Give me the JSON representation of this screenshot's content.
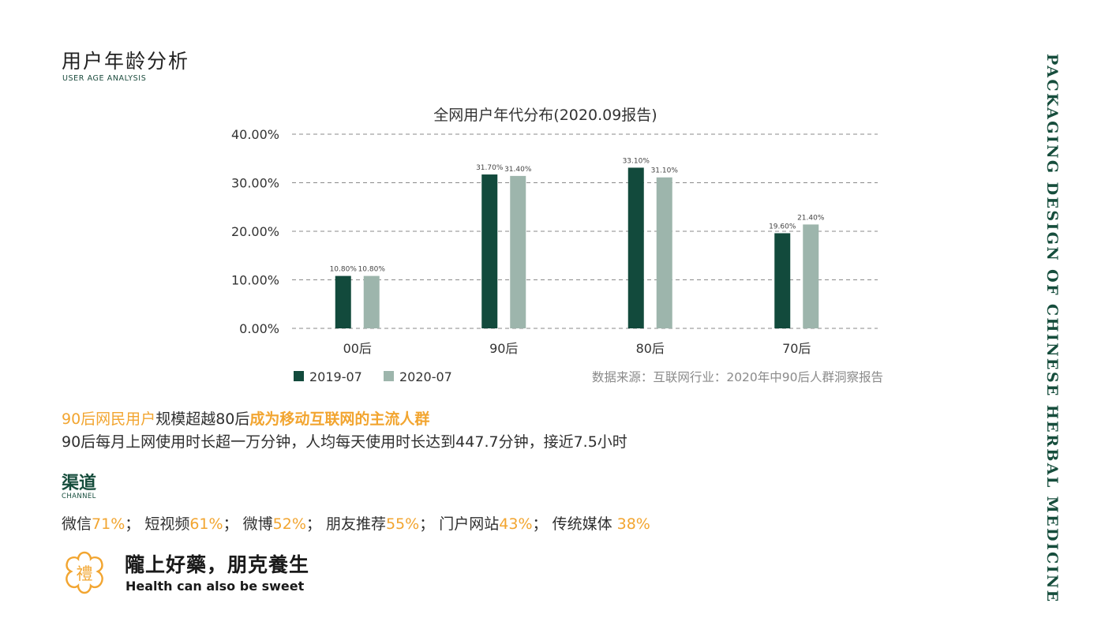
{
  "header": {
    "title": "用户年龄分析",
    "subtitle": "USER AGE ANALYSIS"
  },
  "side_title": "PACKAGING DESIGN OF CHINESE HERBAL MEDICINE",
  "chart_data": {
    "type": "bar",
    "title": "全网用户年代分布(2020.09报告)",
    "categories": [
      "00后",
      "90后",
      "80后",
      "70后"
    ],
    "series": [
      {
        "name": "2019-07",
        "values": [
          10.8,
          31.7,
          33.1,
          19.6
        ],
        "labels": [
          "10.80%",
          "31.70%",
          "33.10%",
          "19.60%"
        ],
        "color": "#124a3c"
      },
      {
        "name": "2020-07",
        "values": [
          10.8,
          31.4,
          31.1,
          21.4
        ],
        "labels": [
          "10.80%",
          "31.40%",
          "31.10%",
          "21.40%"
        ],
        "color": "#9db5ac"
      }
    ],
    "y_ticks": [
      "0.00%",
      "10.00%",
      "20.00%",
      "30.00%",
      "40.00%"
    ],
    "ylim": [
      0,
      40
    ],
    "grid": true,
    "legend_position": "bottom-left",
    "source": "数据来源：互联网行业：2020年中90后人群洞察报告"
  },
  "summary": {
    "headline_part1": "90后网民用户",
    "headline_part2": "规模超越80后",
    "headline_part3": "成为移动互联网的主流人群",
    "detail": "90后每月上网使用时长超一万分钟，人均每天使用时长达到447.7分钟，接近7.5小时"
  },
  "channel": {
    "title": "渠道",
    "subtitle": "CHANNEL",
    "items": [
      {
        "name": "微信",
        "pct": "71%",
        "sep": "；"
      },
      {
        "name": "短视频",
        "pct": "61%",
        "sep": "；"
      },
      {
        "name": "微博",
        "pct": "52%",
        "sep": "；"
      },
      {
        "name": "朋友推荐",
        "pct": "55%",
        "sep": "；"
      },
      {
        "name": "门户网站",
        "pct": "43%",
        "sep": "；"
      },
      {
        "name": "传统媒体 ",
        "pct": "38%",
        "sep": ""
      }
    ]
  },
  "brand": {
    "logo_char": "禮",
    "slogan": "隴上好藥，朋克養生",
    "slogan_en": "Health can also be sweet"
  },
  "colors": {
    "dark_green": "#124a3c",
    "light_green": "#9db5ac",
    "orange": "#f2a530"
  }
}
